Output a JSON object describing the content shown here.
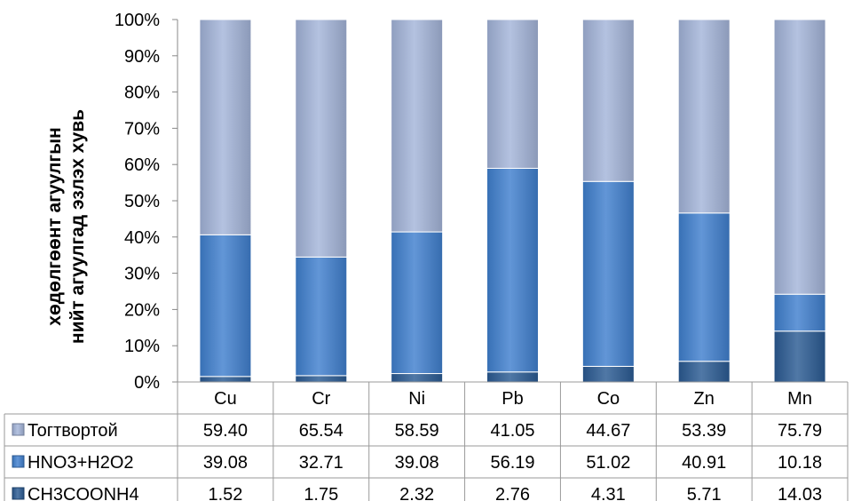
{
  "chart_data": {
    "type": "bar",
    "stacked": true,
    "percent": true,
    "ylabel_lines": [
      "хөдөлгөөнт агуулгын",
      "нийт агуулгад эзлэх хувь"
    ],
    "ylim": [
      0,
      100
    ],
    "yticks": [
      "0%",
      "10%",
      "20%",
      "30%",
      "40%",
      "50%",
      "60%",
      "70%",
      "80%",
      "90%",
      "100%"
    ],
    "categories": [
      "Cu",
      "Cr",
      "Ni",
      "Pb",
      "Co",
      "Zn",
      "Mn"
    ],
    "series": [
      {
        "name": "CH3COONH4",
        "values": [
          1.52,
          1.75,
          2.32,
          2.76,
          4.31,
          5.71,
          14.03
        ],
        "color": "#2a5a93",
        "labels": [
          "1.52",
          "1.75",
          "2.32",
          "2.76",
          "4.31",
          "5.71",
          "14.03"
        ]
      },
      {
        "name": "HNO3+H2O2",
        "values": [
          39.08,
          32.71,
          39.08,
          56.19,
          51.02,
          40.91,
          10.18
        ],
        "color": "#3f7fce",
        "labels": [
          "39.08",
          "32.71",
          "39.08",
          "56.19",
          "51.02",
          "40.91",
          "10.18"
        ]
      },
      {
        "name": "Тогтвортой",
        "values": [
          59.4,
          65.54,
          58.59,
          41.05,
          44.67,
          53.39,
          75.79
        ],
        "color": "#a3b4d9",
        "labels": [
          "59.40",
          "65.54",
          "58.59",
          "41.05",
          "44.67",
          "53.39",
          "75.79"
        ]
      }
    ],
    "table_row_order": [
      "Тогтвортой",
      "HNO3+H2O2",
      "CH3COONH4"
    ],
    "grid": false,
    "legend": "data-table"
  }
}
